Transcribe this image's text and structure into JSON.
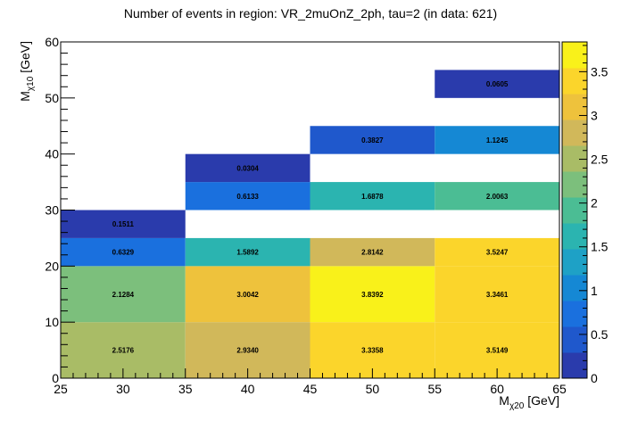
{
  "chart_data": {
    "type": "heatmap",
    "title": "Number of events in region: VR_2muOnZ_2ph, tau=2 (in data: 621)",
    "xlabel": "M",
    "xlabel_sub": "χ20",
    "xlabel_unit": " [GeV]",
    "ylabel": "M",
    "ylabel_sub": "χ10",
    "ylabel_unit": " [GeV]",
    "xlim": [
      25,
      65
    ],
    "ylim": [
      0,
      60
    ],
    "x_ticks": [
      25,
      30,
      35,
      40,
      45,
      50,
      55,
      60,
      65
    ],
    "y_ticks": [
      0,
      10,
      20,
      30,
      40,
      50,
      60
    ],
    "z_range": [
      0,
      3.84
    ],
    "z_ticks": [
      "0",
      "0.5",
      "1",
      "1.5",
      "2",
      "2.5",
      "3",
      "3.5"
    ],
    "z_tick_values": [
      0,
      0.5,
      1,
      1.5,
      2,
      2.5,
      3,
      3.5
    ],
    "palette": [
      "#2a3bac",
      "#1f58cc",
      "#1a70de",
      "#1588d4",
      "#1ea1c6",
      "#2bb4b0",
      "#4bbd94",
      "#7cbf7c",
      "#a9bc66",
      "#d1b85a",
      "#eec23c",
      "#fbd52b",
      "#f9f11a"
    ],
    "cells": [
      {
        "x0": 25,
        "x1": 35,
        "y0": 0,
        "y1": 10,
        "value": 2.5176,
        "label": "2.5176"
      },
      {
        "x0": 35,
        "x1": 45,
        "y0": 0,
        "y1": 10,
        "value": 2.934,
        "label": "2.9340"
      },
      {
        "x0": 45,
        "x1": 55,
        "y0": 0,
        "y1": 10,
        "value": 3.3358,
        "label": "3.3358"
      },
      {
        "x0": 55,
        "x1": 65,
        "y0": 0,
        "y1": 10,
        "value": 3.5149,
        "label": "3.5149"
      },
      {
        "x0": 25,
        "x1": 35,
        "y0": 10,
        "y1": 20,
        "value": 2.1284,
        "label": "2.1284"
      },
      {
        "x0": 35,
        "x1": 45,
        "y0": 10,
        "y1": 20,
        "value": 3.0042,
        "label": "3.0042"
      },
      {
        "x0": 45,
        "x1": 55,
        "y0": 10,
        "y1": 20,
        "value": 3.8392,
        "label": "3.8392"
      },
      {
        "x0": 55,
        "x1": 65,
        "y0": 10,
        "y1": 20,
        "value": 3.3461,
        "label": "3.3461"
      },
      {
        "x0": 25,
        "x1": 35,
        "y0": 20,
        "y1": 25,
        "value": 0.6329,
        "label": "0.6329"
      },
      {
        "x0": 35,
        "x1": 45,
        "y0": 20,
        "y1": 25,
        "value": 1.5892,
        "label": "1.5892"
      },
      {
        "x0": 45,
        "x1": 55,
        "y0": 20,
        "y1": 25,
        "value": 2.8142,
        "label": "2.8142"
      },
      {
        "x0": 55,
        "x1": 65,
        "y0": 20,
        "y1": 25,
        "value": 3.5247,
        "label": "3.5247"
      },
      {
        "x0": 25,
        "x1": 35,
        "y0": 25,
        "y1": 30,
        "value": 0.1511,
        "label": "0.1511"
      },
      {
        "x0": 35,
        "x1": 45,
        "y0": 30,
        "y1": 35,
        "value": 0.6133,
        "label": "0.6133"
      },
      {
        "x0": 45,
        "x1": 55,
        "y0": 30,
        "y1": 35,
        "value": 1.6878,
        "label": "1.6878"
      },
      {
        "x0": 55,
        "x1": 65,
        "y0": 30,
        "y1": 35,
        "value": 2.0063,
        "label": "2.0063"
      },
      {
        "x0": 35,
        "x1": 45,
        "y0": 35,
        "y1": 40,
        "value": 0.0304,
        "label": "0.0304"
      },
      {
        "x0": 45,
        "x1": 55,
        "y0": 40,
        "y1": 45,
        "value": 0.3827,
        "label": "0.3827"
      },
      {
        "x0": 55,
        "x1": 65,
        "y0": 40,
        "y1": 45,
        "value": 1.1245,
        "label": "1.1245"
      },
      {
        "x0": 55,
        "x1": 65,
        "y0": 50,
        "y1": 55,
        "value": 0.0605,
        "label": "0.0605"
      }
    ]
  }
}
